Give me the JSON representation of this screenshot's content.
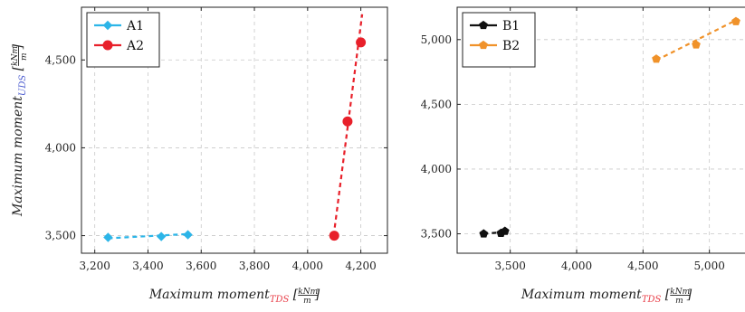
{
  "chart_data": [
    {
      "type": "line",
      "title": "",
      "xlabel": {
        "main": "Maximum moment",
        "sub": "TDS",
        "unit_num": "kNm",
        "unit_den": "m"
      },
      "ylabel": {
        "main": "Maximum moment",
        "sub": "UDS",
        "unit_num": "kNm",
        "unit_den": "m"
      },
      "xlim": [
        3150,
        4300
      ],
      "ylim": [
        3400,
        4800
      ],
      "xticks": [
        3200,
        3400,
        3600,
        3800,
        4000,
        4200
      ],
      "yticks": [
        3500,
        4000,
        4500
      ],
      "xtick_labels": [
        "3,200",
        "3,400",
        "3,600",
        "3,800",
        "4,000",
        "4,200"
      ],
      "ytick_labels": [
        "3,500",
        "4,000",
        "4,500"
      ],
      "grid": true,
      "legend_position": "top-left",
      "series": [
        {
          "name": "A1",
          "color": "#2cb5e8",
          "marker": "diamond",
          "x": [
            3250,
            3450,
            3550
          ],
          "y": [
            3490,
            3495,
            3505
          ]
        },
        {
          "name": "A2",
          "color": "#e8202a",
          "marker": "circle",
          "x": [
            4100,
            4150,
            4200
          ],
          "y": [
            3500,
            4150,
            4600
          ]
        }
      ],
      "trendlines": [
        {
          "series": "A1",
          "x": [
            3250,
            3560
          ],
          "y": [
            3485,
            3510
          ]
        },
        {
          "series": "A2",
          "x": [
            4098,
            4205
          ],
          "y": [
            3500,
            4760
          ]
        }
      ]
    },
    {
      "type": "line",
      "title": "",
      "xlabel": {
        "main": "Maximum moment",
        "sub": "TDS",
        "unit_num": "kNm",
        "unit_den": "m"
      },
      "ylabel": {
        "main": "",
        "sub": "",
        "unit_num": "",
        "unit_den": ""
      },
      "xlim": [
        3100,
        5350
      ],
      "ylim": [
        3350,
        5250
      ],
      "xticks": [
        3500,
        4000,
        4500,
        5000
      ],
      "yticks": [
        3500,
        4000,
        4500,
        5000
      ],
      "xtick_labels": [
        "3,500",
        "4,000",
        "4,500",
        "5,000"
      ],
      "ytick_labels": [
        "3,500",
        "4,000",
        "4,500",
        "5,000"
      ],
      "grid": true,
      "legend_position": "top-left",
      "series": [
        {
          "name": "B1",
          "color": "#111111",
          "marker": "pentagon",
          "x": [
            3300,
            3430,
            3460
          ],
          "y": [
            3500,
            3505,
            3520
          ]
        },
        {
          "name": "B2",
          "color": "#f0922a",
          "marker": "pentagon",
          "x": [
            4600,
            4900,
            5200
          ],
          "y": [
            4850,
            4960,
            5140
          ]
        }
      ],
      "trendlines": [
        {
          "series": "B1",
          "x": [
            3300,
            3470
          ],
          "y": [
            3500,
            3515
          ]
        },
        {
          "series": "B2",
          "x": [
            4600,
            5220
          ],
          "y": [
            4840,
            5160
          ]
        }
      ]
    }
  ]
}
